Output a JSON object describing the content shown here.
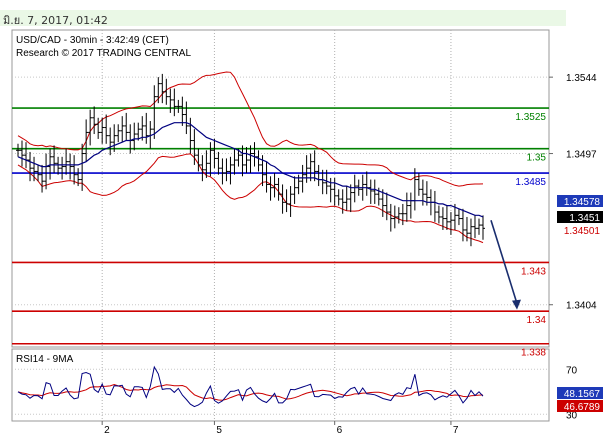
{
  "banner": {
    "timestamp": "มิ.ย. 7, 2017, 01:42"
  },
  "colors": {
    "price": "#000000",
    "bollinger": "#cc0000",
    "moving_average": "#000080",
    "resistance": "#008000",
    "pivot": "#0000cc",
    "support": "#cc0000",
    "arrow": "#1a2e6e",
    "rsi": "#000080",
    "rsi_ma": "#cc0000"
  },
  "chart_data": [
    {
      "type": "candlestick",
      "title": "USD/CAD - 30min - 3:42:49 (CET)",
      "subtitle": "Research © 2017 TRADING CENTRAL",
      "ylim": [
        1.3378,
        1.3573
      ],
      "grid": true,
      "y_ticks": [
        "1.3544",
        "1.3497",
        "1.3404"
      ],
      "x_ticks": [
        "2",
        "5",
        "6",
        "7"
      ],
      "levels": [
        {
          "label": "1.3525",
          "value": 1.3525,
          "kind": "resistance"
        },
        {
          "label": "1.35",
          "value": 1.35,
          "kind": "resistance"
        },
        {
          "label": "1.3485",
          "value": 1.3485,
          "kind": "pivot"
        },
        {
          "label": "1.343",
          "value": 1.343,
          "kind": "support"
        },
        {
          "label": "1.34",
          "value": 1.34,
          "kind": "support"
        },
        {
          "label": "1.338",
          "value": 1.338,
          "kind": "support"
        }
      ],
      "price_tags": [
        {
          "label": "1.34578",
          "value": 1.34578,
          "kind": "moving_average"
        },
        {
          "label": "1.3451",
          "value": 1.3451,
          "kind": "last"
        },
        {
          "label": "1.34501",
          "value": 1.34501,
          "kind": "bollinger"
        }
      ],
      "forecast_arrow": {
        "from": 1.3456,
        "to": 1.3401,
        "direction": "down"
      },
      "closes": [
        1.3499,
        1.3496,
        1.3493,
        1.3488,
        1.3486,
        1.3484,
        1.348,
        1.3489,
        1.3495,
        1.3491,
        1.3488,
        1.3489,
        1.3492,
        1.3489,
        1.3484,
        1.3481,
        1.3497,
        1.351,
        1.3519,
        1.3515,
        1.351,
        1.3513,
        1.3508,
        1.3504,
        1.3508,
        1.3511,
        1.3514,
        1.351,
        1.3505,
        1.3509,
        1.3512,
        1.3514,
        1.3508,
        1.3512,
        1.3532,
        1.354,
        1.3535,
        1.3532,
        1.353,
        1.3526,
        1.3526,
        1.3521,
        1.3514,
        1.3505,
        1.3496,
        1.349,
        1.3487,
        1.3491,
        1.3499,
        1.3494,
        1.3488,
        1.3485,
        1.3486,
        1.349,
        1.3493,
        1.3496,
        1.349,
        1.3493,
        1.3497,
        1.3495,
        1.349,
        1.3484,
        1.3478,
        1.3476,
        1.3478,
        1.3472,
        1.3467,
        1.3466,
        1.3472,
        1.3476,
        1.348,
        1.3484,
        1.3488,
        1.3492,
        1.3486,
        1.3481,
        1.3479,
        1.3477,
        1.3475,
        1.3471,
        1.3469,
        1.3467,
        1.3469,
        1.3473,
        1.3477,
        1.3475,
        1.3478,
        1.3476,
        1.3474,
        1.3472,
        1.3469,
        1.3465,
        1.3461,
        1.3457,
        1.3458,
        1.346,
        1.346,
        1.3465,
        1.3468,
        1.3481,
        1.3475,
        1.3472,
        1.347,
        1.3467,
        1.3461,
        1.3458,
        1.3457,
        1.3455,
        1.3456,
        1.3459,
        1.3457,
        1.345,
        1.3448,
        1.3452,
        1.3451,
        1.3453,
        1.3451
      ],
      "ma_values": [
        1.3495,
        1.3494,
        1.3493,
        1.3492,
        1.3491,
        1.349,
        1.3489,
        1.3489,
        1.349,
        1.349,
        1.349,
        1.349,
        1.349,
        1.349,
        1.349,
        1.349,
        1.3491,
        1.3492,
        1.3494,
        1.3496,
        1.3497,
        1.3499,
        1.35,
        1.3501,
        1.3502,
        1.3503,
        1.3504,
        1.3505,
        1.3505,
        1.3506,
        1.3506,
        1.3507,
        1.3507,
        1.3508,
        1.3509,
        1.3511,
        1.3513,
        1.3514,
        1.3515,
        1.3516,
        1.3516,
        1.3516,
        1.3516,
        1.3515,
        1.3513,
        1.3511,
        1.3509,
        1.3507,
        1.3506,
        1.3505,
        1.3504,
        1.3503,
        1.3502,
        1.3501,
        1.35,
        1.3499,
        1.3497,
        1.3497,
        1.3496,
        1.3495,
        1.3494,
        1.3493,
        1.3492,
        1.349,
        1.3489,
        1.3487,
        1.3485,
        1.3484,
        1.3483,
        1.3482,
        1.3482,
        1.3482,
        1.3482,
        1.3482,
        1.3482,
        1.3481,
        1.3481,
        1.348,
        1.3479,
        1.3479,
        1.3478,
        1.3477,
        1.3477,
        1.3476,
        1.3476,
        1.3476,
        1.3476,
        1.3476,
        1.3475,
        1.3475,
        1.3474,
        1.3473,
        1.3472,
        1.3471,
        1.347,
        1.3469,
        1.3468,
        1.3468,
        1.3468,
        1.3468,
        1.3468,
        1.3468,
        1.3467,
        1.3467,
        1.3467,
        1.3466,
        1.3466,
        1.3465,
        1.3465,
        1.3464,
        1.3463,
        1.3462,
        1.3461,
        1.346,
        1.3459,
        1.3459,
        1.3458
      ]
    },
    {
      "type": "line",
      "title": "RSI14 - 9MA",
      "ylim": [
        24,
        88
      ],
      "y_ticks": [
        "70",
        "30"
      ],
      "value_tags": [
        {
          "label": "48.1567",
          "kind": "rsi"
        },
        {
          "label": "46.6789",
          "kind": "rsi_ma"
        }
      ]
    }
  ]
}
